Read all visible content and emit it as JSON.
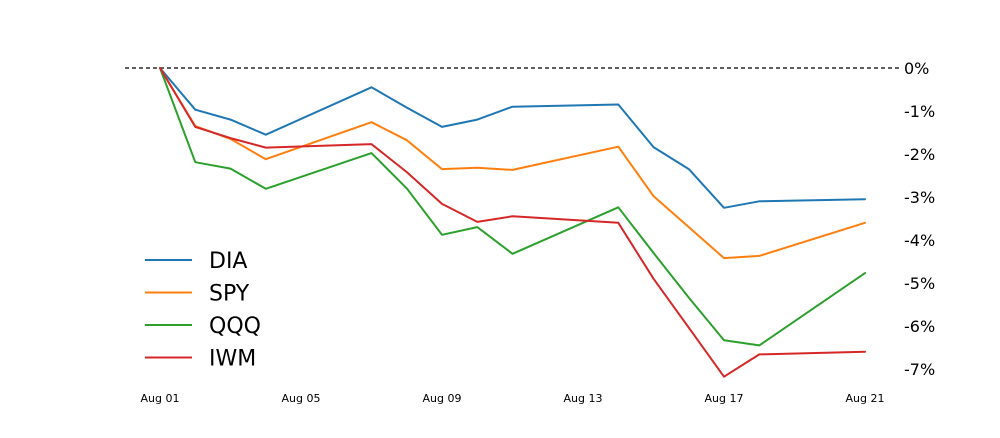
{
  "chart_data": {
    "type": "line",
    "title": "",
    "xlabel": "",
    "ylabel": "",
    "x": [
      "2023-08-01",
      "2023-08-02",
      "2023-08-03",
      "2023-08-04",
      "2023-08-07",
      "2023-08-08",
      "2023-08-09",
      "2023-08-10",
      "2023-08-11",
      "2023-08-14",
      "2023-08-15",
      "2023-08-16",
      "2023-08-17",
      "2023-08-18",
      "2023-08-21"
    ],
    "x_ticks": [
      {
        "date": "2023-08-01",
        "label": "Aug 01"
      },
      {
        "date": "2023-08-05",
        "label": "Aug 05"
      },
      {
        "date": "2023-08-09",
        "label": "Aug 09"
      },
      {
        "date": "2023-08-13",
        "label": "Aug 13"
      },
      {
        "date": "2023-08-17",
        "label": "Aug 17"
      },
      {
        "date": "2023-08-21",
        "label": "Aug 21"
      }
    ],
    "y_ticks": [
      {
        "value": 0,
        "label": "0%"
      },
      {
        "value": -1,
        "label": "-1%"
      },
      {
        "value": -2,
        "label": "-2%"
      },
      {
        "value": -3,
        "label": "-3%"
      },
      {
        "value": -4,
        "label": "-4%"
      },
      {
        "value": -5,
        "label": "-5%"
      },
      {
        "value": -6,
        "label": "-6%"
      },
      {
        "value": -7,
        "label": "-7%"
      }
    ],
    "ylim": [
      -7.3,
      0.3
    ],
    "y_axis_position": "right",
    "reference_line": {
      "value": 0,
      "style": "dashed",
      "color": "#000000"
    },
    "grid": false,
    "legend_position": "lower-left",
    "series": [
      {
        "name": "DIA",
        "color": "#1f77b4",
        "values": [
          0,
          -0.97,
          -1.2,
          -1.55,
          -0.45,
          -0.92,
          -1.37,
          -1.2,
          -0.9,
          -0.85,
          -1.84,
          -2.35,
          -3.25,
          -3.1,
          -3.05
        ]
      },
      {
        "name": "SPY",
        "color": "#ff7f0e",
        "values": [
          0,
          -1.35,
          -1.65,
          -2.12,
          -1.26,
          -1.68,
          -2.35,
          -2.32,
          -2.37,
          -1.83,
          -2.98,
          -3.7,
          -4.42,
          -4.37,
          -3.6
        ]
      },
      {
        "name": "QQQ",
        "color": "#2ca02c",
        "values": [
          0,
          -2.19,
          -2.34,
          -2.81,
          -1.98,
          -2.8,
          -3.88,
          -3.7,
          -4.32,
          -3.24,
          -4.3,
          -5.34,
          -6.33,
          -6.45,
          -4.77
        ]
      },
      {
        "name": "IWM",
        "color": "#d62728",
        "values": [
          0,
          -1.37,
          -1.63,
          -1.85,
          -1.77,
          -2.42,
          -3.16,
          -3.58,
          -3.45,
          -3.6,
          -4.9,
          -6.04,
          -7.18,
          -6.66,
          -6.6
        ]
      }
    ]
  }
}
